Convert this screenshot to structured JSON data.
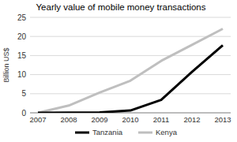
{
  "chart_data": {
    "type": "line",
    "title": "Yearly value of mobile money transactions",
    "y_label": "Billion US$",
    "categories": [
      "2007",
      "2008",
      "2009",
      "2010",
      "2011",
      "2012",
      "2013"
    ],
    "series": [
      {
        "name": "Tanzania",
        "color": "#000000",
        "values": [
          0,
          0.05,
          0.1,
          0.6,
          3.4,
          10.7,
          17.7
        ]
      },
      {
        "name": "Kenya",
        "color": "#bfbfbf",
        "values": [
          0,
          1.9,
          5.3,
          8.4,
          13.6,
          17.8,
          22
        ]
      }
    ],
    "ylim": [
      0,
      25
    ],
    "yticks": [
      0,
      5,
      10,
      15,
      20,
      25
    ],
    "grid": true,
    "legend": "bottom"
  }
}
